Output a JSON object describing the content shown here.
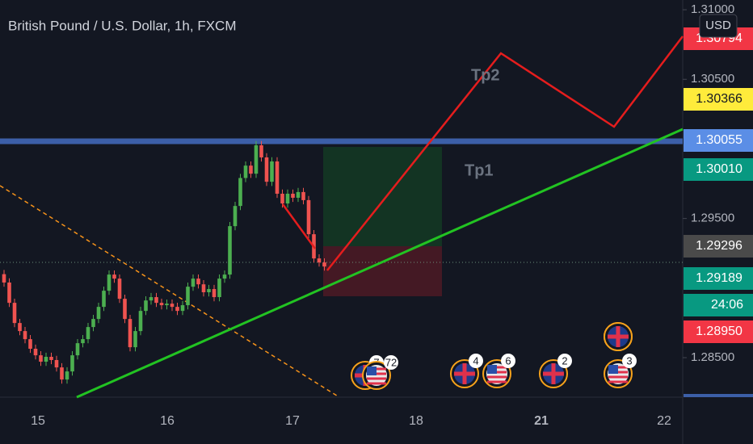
{
  "chart_data": {
    "type": "candlestick",
    "title": "British Pound / U.S. Dollar, 1h, FXCM",
    "currency_button": "USD",
    "up_color": "#4caf50",
    "down_color": "#ef5350",
    "open": [
      1.291,
      1.2904,
      1.28894,
      1.28749,
      1.28691,
      1.28633,
      1.28564,
      1.28517,
      1.28471,
      1.28506,
      1.28483,
      1.2843,
      1.28343,
      1.28401,
      1.28517,
      1.28604,
      1.28633,
      1.2872,
      1.28778,
      1.28865,
      1.28981,
      1.29097,
      1.29068,
      1.28923,
      1.28778,
      1.28575,
      1.28691,
      1.28836,
      1.28911,
      1.28935,
      1.28894,
      1.28877,
      1.28888,
      1.28865,
      1.28836,
      1.28877,
      1.2901,
      1.29068,
      1.29027,
      1.2897,
      1.28993,
      1.28935,
      1.29068,
      1.29097,
      1.29445,
      1.2959,
      1.29791,
      1.2988,
      1.29822,
      1.30026,
      1.29939,
      1.29764,
      1.2991,
      1.29678,
      1.29608,
      1.29678,
      1.29649,
      1.2969,
      1.29632,
      1.29387,
      1.29213,
      1.29184
    ],
    "high": [
      1.2913,
      1.2907,
      1.28924,
      1.28779,
      1.28721,
      1.28663,
      1.28594,
      1.28547,
      1.28536,
      1.28536,
      1.28513,
      1.2846,
      1.28431,
      1.28547,
      1.28634,
      1.28663,
      1.2875,
      1.28808,
      1.28895,
      1.29011,
      1.29127,
      1.29127,
      1.29098,
      1.28953,
      1.28808,
      1.28721,
      1.28866,
      1.28941,
      1.28965,
      1.28965,
      1.28924,
      1.28918,
      1.28918,
      1.28895,
      1.28907,
      1.2904,
      1.29098,
      1.29098,
      1.29057,
      1.29023,
      1.29023,
      1.29098,
      1.29127,
      1.29475,
      1.2962,
      1.29821,
      1.2991,
      1.2991,
      1.30056,
      1.30056,
      1.29969,
      1.2994,
      1.2994,
      1.29708,
      1.29708,
      1.29708,
      1.2972,
      1.2972,
      1.29662,
      1.29417,
      1.29243,
      1.29214
    ],
    "low": [
      1.2901,
      1.28864,
      1.28719,
      1.28661,
      1.28603,
      1.28534,
      1.28487,
      1.28441,
      1.28441,
      1.28453,
      1.284,
      1.28313,
      1.28313,
      1.28371,
      1.28487,
      1.28574,
      1.28603,
      1.2869,
      1.28748,
      1.28835,
      1.28951,
      1.29038,
      1.28893,
      1.28748,
      1.28545,
      1.28545,
      1.28661,
      1.28806,
      1.28881,
      1.28864,
      1.28847,
      1.28847,
      1.28835,
      1.28806,
      1.28806,
      1.28847,
      1.2898,
      1.28997,
      1.2894,
      1.2894,
      1.28905,
      1.28905,
      1.29038,
      1.29067,
      1.29415,
      1.2956,
      1.29761,
      1.29792,
      1.29792,
      1.29909,
      1.29734,
      1.29734,
      1.29648,
      1.29578,
      1.29578,
      1.29619,
      1.29619,
      1.29602,
      1.29357,
      1.29183,
      1.29154,
      1.29125
    ],
    "close": [
      1.2904,
      1.28894,
      1.28749,
      1.28691,
      1.28633,
      1.28564,
      1.28517,
      1.28471,
      1.28506,
      1.28483,
      1.2843,
      1.28343,
      1.28401,
      1.28517,
      1.28604,
      1.28633,
      1.2872,
      1.28778,
      1.28865,
      1.28981,
      1.29097,
      1.29068,
      1.28923,
      1.28778,
      1.28575,
      1.28691,
      1.28836,
      1.28911,
      1.28935,
      1.28894,
      1.28877,
      1.28888,
      1.28865,
      1.28836,
      1.28877,
      1.2901,
      1.29068,
      1.29027,
      1.2897,
      1.28993,
      1.28935,
      1.29068,
      1.29097,
      1.29445,
      1.2959,
      1.29791,
      1.2988,
      1.29822,
      1.30026,
      1.29939,
      1.29764,
      1.2991,
      1.29678,
      1.29608,
      1.29678,
      1.29649,
      1.2969,
      1.29632,
      1.29387,
      1.29213,
      1.29184,
      1.29155
    ],
    "ylim": [
      1.28216,
      1.3107
    ],
    "yticks": [
      {
        "value": 1.31,
        "label": "1.31000"
      },
      {
        "value": 1.305,
        "label": "1.30500"
      },
      {
        "value": 1.295,
        "label": "1.29500"
      },
      {
        "value": 1.285,
        "label": "1.28500"
      }
    ],
    "xticks": [
      "15",
      "16",
      "17",
      "18",
      "21",
      "22"
    ],
    "price_tags": [
      {
        "label": "1.30794",
        "color": "#f23645"
      },
      {
        "label": "1.30366",
        "color": "#ffeb3b"
      },
      {
        "label": "1.30055",
        "color": "#5b8ee6"
      },
      {
        "label": "1.30010",
        "color": "#089981"
      },
      {
        "label": "1.29296",
        "color": "#4a4a4a"
      },
      {
        "label": "1.29189",
        "color": "#089981"
      },
      {
        "label": "24:06",
        "color": "#089981"
      },
      {
        "label": "1.28950",
        "color": "#f23645"
      }
    ],
    "annotations": [
      "Tp1",
      "Tp2"
    ],
    "events": [
      {
        "flag": "UK",
        "count": "7"
      },
      {
        "flag": "US",
        "count": "72"
      },
      {
        "flag": "UK",
        "count": "4"
      },
      {
        "flag": "US",
        "count": "6"
      },
      {
        "flag": "UK",
        "count": "2"
      },
      {
        "flag": "US",
        "count": "3"
      }
    ]
  }
}
